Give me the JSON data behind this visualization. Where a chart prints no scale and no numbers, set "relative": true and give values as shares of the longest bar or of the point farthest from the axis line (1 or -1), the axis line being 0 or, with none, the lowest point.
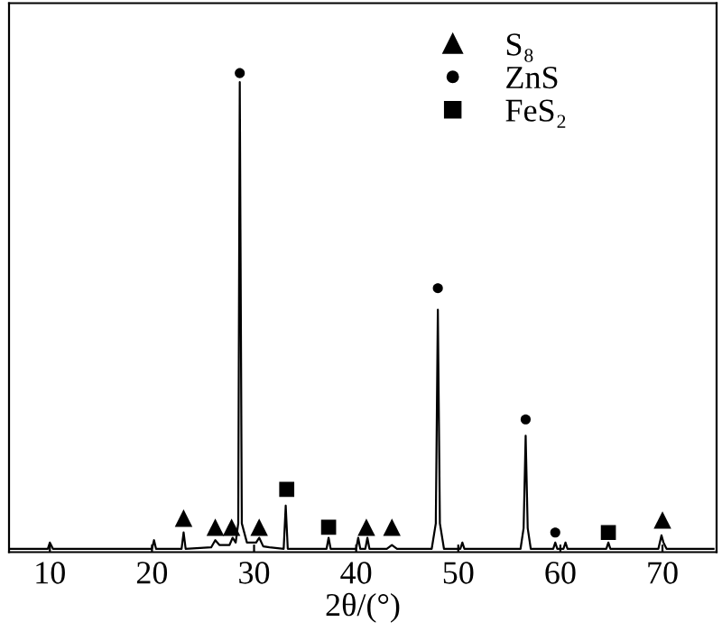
{
  "chart_data": {
    "type": "line",
    "relative": true,
    "xlabel": "2θ/(°)",
    "xlim": [
      6,
      75.3
    ],
    "xticks": [
      10,
      20,
      30,
      40,
      50,
      60,
      70
    ],
    "grid": false,
    "legend": "top right",
    "tick_labels": "x",
    "series": [
      {
        "color": "#000000",
        "marker": "none",
        "x": [
          6,
          9.8,
          10,
          10.3,
          20,
          20.2,
          20.4,
          22.9,
          23.1,
          23.3,
          25.8,
          26.2,
          26.6,
          27.6,
          27.9,
          28.2,
          28.45,
          28.6,
          28.8,
          29.3,
          30.2,
          30.5,
          30.9,
          31.5,
          32.9,
          33.1,
          33.3,
          37.1,
          37.3,
          37.5,
          40,
          40.2,
          40.4,
          40.9,
          41.1,
          41.3,
          43,
          43.5,
          44,
          47.4,
          47.8,
          48.0,
          48.2,
          48.6,
          50.2,
          50.4,
          50.6,
          56.1,
          56.4,
          56.6,
          56.8,
          57.1,
          59.3,
          59.5,
          59.7,
          60.3,
          60.5,
          60.7,
          64.5,
          64.7,
          64.9,
          69.6,
          69.9,
          70.1,
          70.4,
          72,
          75
        ],
        "values": [
          0.007,
          0.007,
          0.02,
          0.007,
          0.007,
          0.025,
          0.007,
          0.007,
          0.041,
          0.007,
          0.01,
          0.025,
          0.015,
          0.015,
          0.03,
          0.02,
          0.06,
          0.981,
          0.06,
          0.02,
          0.02,
          0.03,
          0.012,
          0.01,
          0.007,
          0.097,
          0.007,
          0.007,
          0.03,
          0.007,
          0.007,
          0.03,
          0.007,
          0.007,
          0.03,
          0.007,
          0.007,
          0.015,
          0.007,
          0.007,
          0.06,
          0.506,
          0.06,
          0.007,
          0.007,
          0.02,
          0.007,
          0.007,
          0.05,
          0.243,
          0.05,
          0.007,
          0.007,
          0.02,
          0.007,
          0.007,
          0.02,
          0.007,
          0.007,
          0.02,
          0.007,
          0.007,
          0.035,
          0.02,
          0.007,
          0.007,
          0.007
        ]
      },
      {
        "type": "scatter",
        "name": "S₈",
        "color": "#000000",
        "marker": "triangle",
        "x": [
          23.1,
          26.2,
          27.8,
          30.5,
          41,
          43.5,
          70
        ],
        "values": [
          0.071,
          0.052,
          0.052,
          0.052,
          0.052,
          0.052,
          0.067
        ]
      },
      {
        "type": "scatter",
        "name": "ZnS",
        "color": "#000000",
        "marker": "circle",
        "x": [
          28.6,
          48,
          56.6,
          59.5
        ],
        "values": [
          1.0,
          0.551,
          0.277,
          0.041
        ]
      },
      {
        "type": "scatter",
        "name": "FeS₂",
        "color": "#000000",
        "marker": "square",
        "x": [
          33.2,
          37.3,
          64.7
        ],
        "values": [
          0.131,
          0.052,
          0.041
        ]
      }
    ]
  }
}
